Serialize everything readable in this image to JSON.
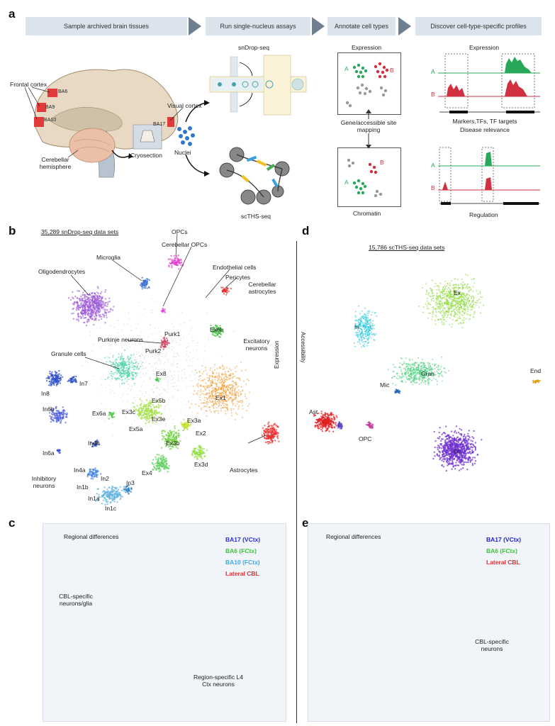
{
  "panels": {
    "a": "a",
    "b": "b",
    "c": "c",
    "d": "d",
    "e": "e"
  },
  "workflow": {
    "step1": "Sample archived brain tissues",
    "step2": "Run single-nucleus assays",
    "step3": "Annotate cell types",
    "step4": "Discover cell-type-specific profiles"
  },
  "brain": {
    "frontal_cortex": "Frontal cortex",
    "ba6": "BA6",
    "ba9": "BA9",
    "ba10": "BA10",
    "ba17": "BA17",
    "visual_cortex": "Visual cortex",
    "cerebellar_hemisphere": "Cerebellar hemisphere",
    "cryosection": "Cryosection",
    "nuclei": "Nuclei"
  },
  "assays": {
    "sndrop": "snDrop-seq",
    "scths": "scTHS-seq"
  },
  "annotate": {
    "expression": "Expression",
    "mapping": "Gene/accessible site mapping",
    "chromatin": "Chromatin",
    "A": "A",
    "B": "B"
  },
  "discover": {
    "expression": "Expression",
    "markers": "Markers,TFs, TF targets",
    "disease": "Disease relevance",
    "regulation": "Regulation",
    "A": "A",
    "B": "B"
  },
  "panel_b": {
    "title": "35,289 snDrop-seq data sets",
    "labels": {
      "opcs": "OPCs",
      "cerebellar_opcs": "Cerebellar OPCs",
      "microglia": "Microglia",
      "oligodendrocytes": "Oligodendrocytes",
      "endothelial": "Endothelial cells",
      "pericytes": "Pericytes",
      "cerebellar_astrocytes": "Cerebellar astrocytes",
      "purk1": "Purk1",
      "purk2": "Purk2",
      "purkinje": "Purkinje neurons",
      "ex6b": "Ex6b",
      "excitatory": "Excitatory neurons",
      "granule": "Granule cells",
      "ex8": "Ex8",
      "ex1": "Ex1",
      "in8": "In8",
      "in7": "In7",
      "in6b": "In6b",
      "ex6a": "Ex6a",
      "ex3c": "Ex3c",
      "ex5b": "Ex5b",
      "ex3e": "Ex3e",
      "ex3a": "Ex3a",
      "ex5a": "Ex5a",
      "ex2": "Ex2",
      "ex3b": "Ex3b",
      "in6a": "In6a",
      "in4b": "In4b",
      "ex3d": "Ex3d",
      "ex4": "Ex4",
      "astrocytes": "Astrocytes",
      "in4a": "In4a",
      "inhibitory": "Inhibitory neurons",
      "in2": "In2",
      "in3": "In3",
      "in1b": "In1b",
      "in1a": "In1a",
      "in1c": "In1c"
    }
  },
  "panel_d": {
    "title": "15,786 scTHS-seq data sets",
    "expression": "Expression",
    "accessibility": "Accessibility",
    "labels": {
      "ex": "Ex",
      "in": "In",
      "gran": "Gran",
      "mic": "Mic",
      "end": "End",
      "ast": "Ast",
      "opc": "OPC",
      "oli": "Oli"
    }
  },
  "panel_c": {
    "title": "Regional differences",
    "legend": [
      {
        "label": "BA17 (VCtx)",
        "color": "#2b2bd6"
      },
      {
        "label": "BA6 (FCtx)",
        "color": "#3cc23c"
      },
      {
        "label": "BA10 (FCtx)",
        "color": "#3fa9e6"
      },
      {
        "label": "Lateral CBL",
        "color": "#e03030"
      }
    ],
    "cbl": "CBL-specific neurons/glia",
    "region": "Region-specific L4 Ctx neurons"
  },
  "panel_e": {
    "title": "Regional differences",
    "legend": [
      {
        "label": "BA17 (VCtx)",
        "color": "#2222cc"
      },
      {
        "label": "BA6 (FCtx)",
        "color": "#3cc23c"
      },
      {
        "label": "Lateral CBL",
        "color": "#e03030"
      }
    ],
    "cbl": "CBL-specific neurons"
  },
  "colors": {
    "oligo": "#9b59d6",
    "microglia": "#3a6fd0",
    "opcs": "#e040d0",
    "excitatory": "#f0a040",
    "granule": "#40d0a0",
    "inhibitory": "#3050c8",
    "astro": "#e83030",
    "green": "#40c040",
    "cyan": "#30c8d8"
  }
}
